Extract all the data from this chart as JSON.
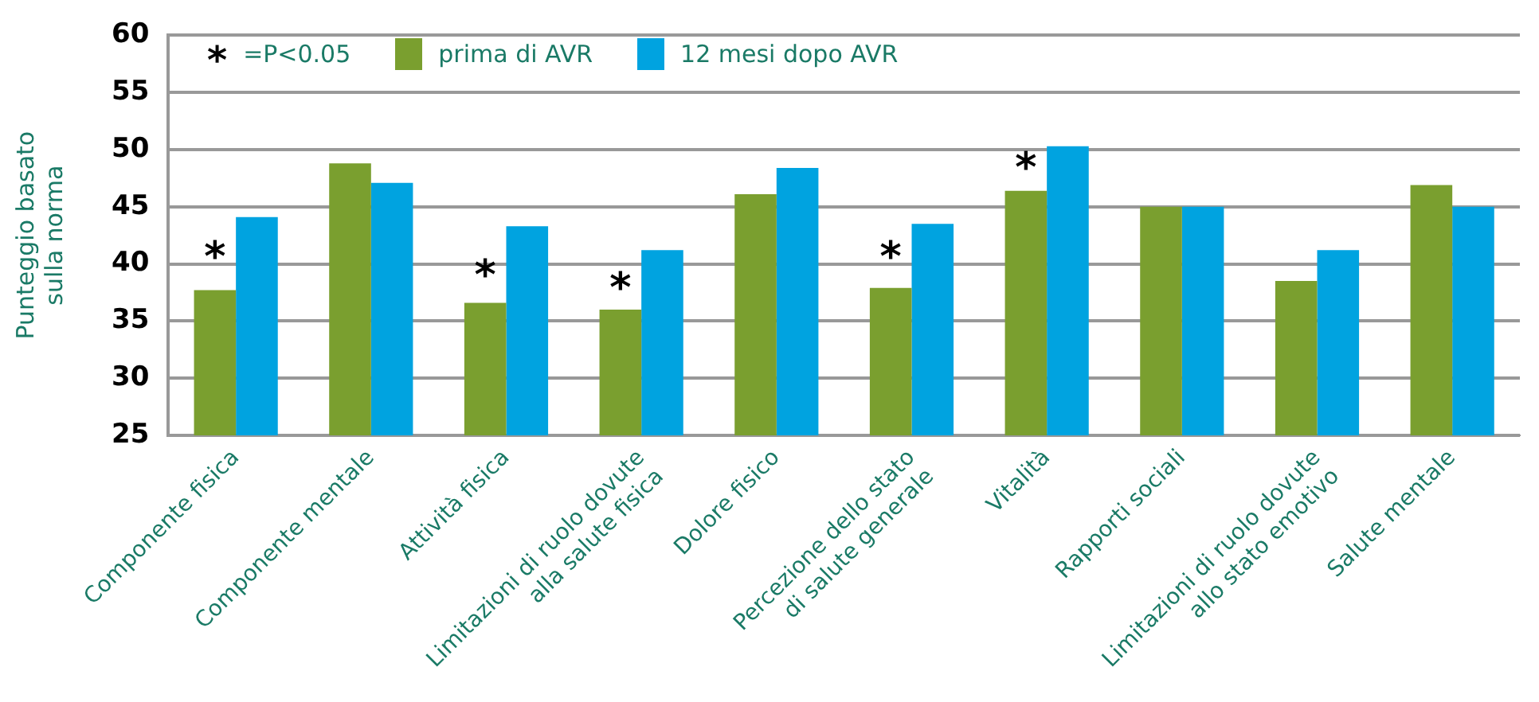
{
  "chart_data": {
    "type": "bar",
    "ylabel": "Punteggio basato\nsulla norma",
    "categories": [
      "Componente fisica",
      "Componente mentale",
      "Attività fisica",
      "Limitazioni di ruolo dovute\nalla salute fisica",
      "Dolore fisico",
      "Percezione dello stato\ndi salute generale",
      "Vitalità",
      "Rapporti sociali",
      "Limitazioni di ruolo dovute\nallo stato emotivo",
      "Salute mentale"
    ],
    "series": [
      {
        "name": "prima di AVR",
        "color": "#7a9f2f",
        "values": [
          37.7,
          48.8,
          36.6,
          36.0,
          46.1,
          37.9,
          46.4,
          45.0,
          38.5,
          46.9
        ]
      },
      {
        "name": "12 mesi dopo AVR",
        "color": "#00a3e0",
        "values": [
          44.1,
          47.1,
          43.3,
          41.2,
          48.4,
          43.5,
          50.3,
          45.0,
          41.2,
          45.0
        ]
      }
    ],
    "ylim": [
      25,
      60
    ],
    "yticks": [
      25,
      30,
      35,
      40,
      45,
      50,
      55,
      60
    ],
    "grid": "y",
    "legend": "top",
    "annotations": [
      "* =P<0.05",
      {
        "text": "*",
        "x": "Componente fisica",
        "y": 41.2
      },
      {
        "text": "*",
        "x": "Attività fisica",
        "y": 39.6
      },
      {
        "text": "*",
        "x": "Limitazioni di ruolo dovute\nalla salute fisica",
        "y": 38.5
      },
      {
        "text": "*",
        "x": "Percezione dello stato\ndi salute generale",
        "y": 41.2
      },
      {
        "text": "*",
        "x": "Vitalità",
        "y": 49.0
      }
    ]
  }
}
